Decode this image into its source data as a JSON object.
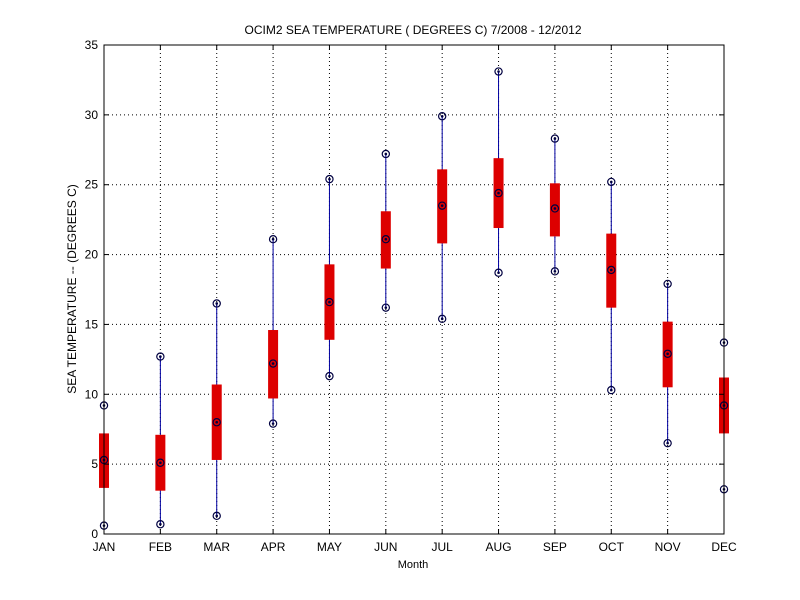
{
  "chart_data": {
    "type": "box",
    "title": "OCIM2  SEA TEMPERATURE ( DEGREES C) 7/2008 - 12/2012",
    "xlabel": "Month",
    "ylabel": "SEA TEMPERATURE -- (DEGREES C)",
    "ylim": [
      0,
      35
    ],
    "yticks": [
      0,
      5,
      10,
      15,
      20,
      25,
      30,
      35
    ],
    "grid": true,
    "categories": [
      "JAN",
      "FEB",
      "MAR",
      "APR",
      "MAY",
      "JUN",
      "JUL",
      "AUG",
      "SEP",
      "OCT",
      "NOV",
      "DEC"
    ],
    "boxes": [
      {
        "min": 0.6,
        "q1": 3.3,
        "median": 5.3,
        "q3": 7.2,
        "max": 9.2
      },
      {
        "min": 0.7,
        "q1": 3.1,
        "median": 5.1,
        "q3": 7.1,
        "max": 12.7
      },
      {
        "min": 1.3,
        "q1": 5.3,
        "median": 8.0,
        "q3": 10.7,
        "max": 16.5
      },
      {
        "min": 7.9,
        "q1": 9.7,
        "median": 12.2,
        "q3": 14.6,
        "max": 21.1
      },
      {
        "min": 11.3,
        "q1": 13.9,
        "median": 16.6,
        "q3": 19.3,
        "max": 25.4
      },
      {
        "min": 16.2,
        "q1": 19.0,
        "median": 21.1,
        "q3": 23.1,
        "max": 27.2
      },
      {
        "min": 15.4,
        "q1": 20.8,
        "median": 23.5,
        "q3": 26.1,
        "max": 29.9
      },
      {
        "min": 18.7,
        "q1": 21.9,
        "median": 24.4,
        "q3": 26.9,
        "max": 33.1
      },
      {
        "min": 18.8,
        "q1": 21.3,
        "median": 23.3,
        "q3": 25.1,
        "max": 28.3
      },
      {
        "min": 10.3,
        "q1": 16.2,
        "median": 18.9,
        "q3": 21.5,
        "max": 25.2
      },
      {
        "min": 6.5,
        "q1": 10.5,
        "median": 12.9,
        "q3": 15.2,
        "max": 17.9
      },
      {
        "min": 3.2,
        "q1": 7.2,
        "median": 9.2,
        "q3": 11.2,
        "max": 13.7
      }
    ],
    "colors": {
      "box": "#dd0000",
      "whisker": "#0000a0",
      "marker": "#000040",
      "grid": "#000000",
      "axis": "#000000"
    }
  }
}
